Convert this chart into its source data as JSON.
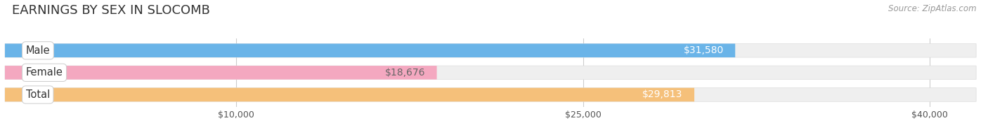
{
  "title": "EARNINGS BY SEX IN SLOCOMB",
  "source": "Source: ZipAtlas.com",
  "categories": [
    "Male",
    "Female",
    "Total"
  ],
  "values": [
    31580,
    18676,
    29813
  ],
  "bar_colors": [
    "#6ab4e8",
    "#f4a8c0",
    "#f5c07a"
  ],
  "bar_labels": [
    "$31,580",
    "$18,676",
    "$29,813"
  ],
  "label_text_colors": [
    "#ffffff",
    "#666666",
    "#ffffff"
  ],
  "track_color": "#efefef",
  "track_border_color": "#dddddd",
  "x_ticks": [
    10000,
    25000,
    40000
  ],
  "x_tick_labels": [
    "$10,000",
    "$25,000",
    "$40,000"
  ],
  "x_max": 42000,
  "title_fontsize": 13,
  "bar_height": 0.62,
  "background_color": "#ffffff",
  "category_label_fontsize": 10.5,
  "value_label_fontsize": 10,
  "grid_color": "#cccccc"
}
